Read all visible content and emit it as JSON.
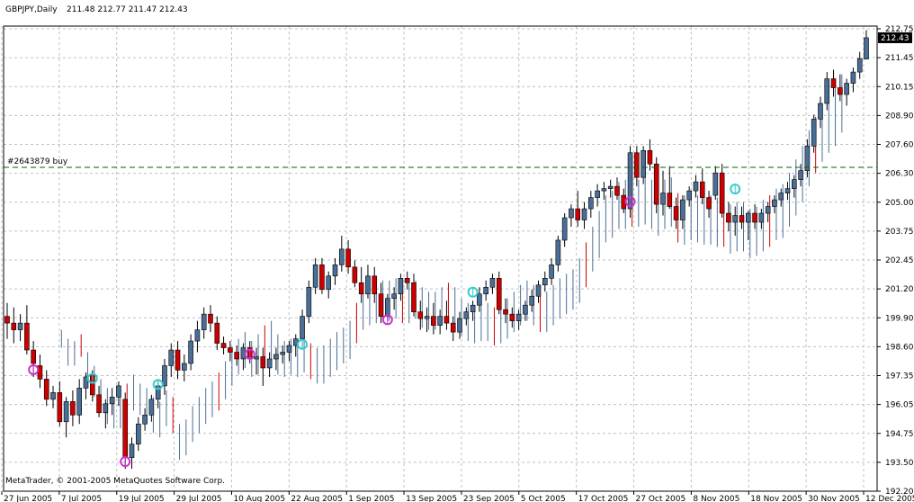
{
  "header": {
    "symbol_period": "GBPJPY,Daily",
    "ohlc": "211.48 212.77 211.47 212.43"
  },
  "copyright": "MetaTrader, © 2001-2005 MetaQuotes Software Corp.",
  "order_line": {
    "label": "#2643879 buy",
    "price": 206.65
  },
  "current_price": {
    "label": "212.43",
    "value": 212.43
  },
  "colors": {
    "background": "#ffffff",
    "grid": "#c0c0c0",
    "frame": "#000000",
    "bull_body": "#4a6e96",
    "bear_body": "#cc0000",
    "wick": "#000000",
    "secondary_line": "#4a6e96",
    "secondary_bear": "#cc0000",
    "order_line": "#006600",
    "signal_up": "#33cccc",
    "signal_down": "#cc33cc"
  },
  "chart_data": {
    "type": "candlestick",
    "y_axis": {
      "min": 192.2,
      "max": 212.95,
      "ticks": [
        "212.75",
        "211.45",
        "210.15",
        "208.90",
        "207.60",
        "206.30",
        "205.00",
        "203.75",
        "202.45",
        "201.20",
        "199.90",
        "198.60",
        "197.35",
        "196.05",
        "194.75",
        "193.50",
        "192.20"
      ]
    },
    "x_axis": {
      "labels": [
        "27 Jun 2005",
        "7 Jul 2005",
        "19 Jul 2005",
        "29 Jul 2005",
        "10 Aug 2005",
        "22 Aug 2005",
        "1 Sep 2005",
        "13 Sep 2005",
        "23 Sep 2005",
        "5 Oct 2005",
        "17 Oct 2005",
        "27 Oct 2005",
        "8 Nov 2005",
        "18 Nov 2005",
        "30 Nov 2005",
        "12 Dec 2005"
      ]
    },
    "candles": [
      [
        200.0,
        200.6,
        199.0,
        199.7
      ],
      [
        199.7,
        200.4,
        198.8,
        199.4
      ],
      [
        199.4,
        200.1,
        198.9,
        199.7
      ],
      [
        199.7,
        200.5,
        198.3,
        198.5
      ],
      [
        198.5,
        198.9,
        197.3,
        197.9
      ],
      [
        197.8,
        198.3,
        196.8,
        197.2
      ],
      [
        197.2,
        197.6,
        196.0,
        196.3
      ],
      [
        196.3,
        196.9,
        195.9,
        196.6
      ],
      [
        196.6,
        197.1,
        195.1,
        195.3
      ],
      [
        195.3,
        196.4,
        194.6,
        196.2
      ],
      [
        196.2,
        196.7,
        195.1,
        195.6
      ],
      [
        195.6,
        197.2,
        195.2,
        196.8
      ],
      [
        196.8,
        197.5,
        196.3,
        197.3
      ],
      [
        197.4,
        197.6,
        196.2,
        196.5
      ],
      [
        196.5,
        196.9,
        195.5,
        195.7
      ],
      [
        195.7,
        196.3,
        195.0,
        196.1
      ],
      [
        196.1,
        196.8,
        195.6,
        196.4
      ],
      [
        196.4,
        197.1,
        196.0,
        196.9
      ],
      [
        196.3,
        196.6,
        193.2,
        193.7
      ],
      [
        193.7,
        194.6,
        193.2,
        194.3
      ],
      [
        194.3,
        195.5,
        194.0,
        195.2
      ],
      [
        195.2,
        195.9,
        194.9,
        195.6
      ],
      [
        195.6,
        196.5,
        195.3,
        196.3
      ],
      [
        196.3,
        197.2,
        195.9,
        196.9
      ],
      [
        196.9,
        198.1,
        196.5,
        197.8
      ],
      [
        197.8,
        198.8,
        197.3,
        198.5
      ],
      [
        198.5,
        198.9,
        197.2,
        197.6
      ],
      [
        197.6,
        198.3,
        197.1,
        197.9
      ],
      [
        197.9,
        199.2,
        197.6,
        198.9
      ],
      [
        198.9,
        199.8,
        198.4,
        199.4
      ],
      [
        199.4,
        200.4,
        199.0,
        200.1
      ],
      [
        200.1,
        200.5,
        199.3,
        199.7
      ],
      [
        199.7,
        200.0,
        198.5,
        198.8
      ],
      [
        198.8,
        199.1,
        198.3,
        198.6
      ],
      [
        198.6,
        198.9,
        198.0,
        198.4
      ],
      [
        198.4,
        198.7,
        197.8,
        198.1
      ],
      [
        198.1,
        198.8,
        197.6,
        198.6
      ],
      [
        198.6,
        198.9,
        197.9,
        198.1
      ],
      [
        198.1,
        198.6,
        197.4,
        198.2
      ],
      [
        198.2,
        198.6,
        196.9,
        197.7
      ],
      [
        197.7,
        198.4,
        197.3,
        198.1
      ],
      [
        198.1,
        198.6,
        197.6,
        198.3
      ],
      [
        198.3,
        198.7,
        197.9,
        198.4
      ],
      [
        198.4,
        198.9,
        198.0,
        198.7
      ],
      [
        198.7,
        199.2,
        198.2,
        199.0
      ],
      [
        199.0,
        200.3,
        198.7,
        200.0
      ],
      [
        200.0,
        201.6,
        199.7,
        201.3
      ],
      [
        201.3,
        202.6,
        201.0,
        202.3
      ],
      [
        202.3,
        202.6,
        201.0,
        201.2
      ],
      [
        201.2,
        202.0,
        200.8,
        201.8
      ],
      [
        201.8,
        202.6,
        201.4,
        202.3
      ],
      [
        202.3,
        203.6,
        202.0,
        203.0
      ],
      [
        203.0,
        203.4,
        201.9,
        202.2
      ],
      [
        202.2,
        202.5,
        201.3,
        201.5
      ],
      [
        201.5,
        202.2,
        200.6,
        201.0
      ],
      [
        201.0,
        202.3,
        200.8,
        201.8
      ],
      [
        201.8,
        202.2,
        200.6,
        201.0
      ],
      [
        201.0,
        201.5,
        199.7,
        200.0
      ],
      [
        200.0,
        201.0,
        199.8,
        200.8
      ],
      [
        200.8,
        201.3,
        200.3,
        201.0
      ],
      [
        201.0,
        201.9,
        200.7,
        201.7
      ],
      [
        201.7,
        202.0,
        201.2,
        201.5
      ],
      [
        201.5,
        201.9,
        200.0,
        200.2
      ],
      [
        200.2,
        200.7,
        199.4,
        199.9
      ],
      [
        199.9,
        200.4,
        199.3,
        200.0
      ],
      [
        200.0,
        200.6,
        199.2,
        199.6
      ],
      [
        199.6,
        200.3,
        199.2,
        200.0
      ],
      [
        200.0,
        200.7,
        199.4,
        199.7
      ],
      [
        199.7,
        200.0,
        198.9,
        199.3
      ],
      [
        199.3,
        200.2,
        199.0,
        199.9
      ],
      [
        199.9,
        200.4,
        199.6,
        200.2
      ],
      [
        200.2,
        200.7,
        199.8,
        200.5
      ],
      [
        200.5,
        201.3,
        200.2,
        201.0
      ],
      [
        201.0,
        201.6,
        200.7,
        201.3
      ],
      [
        201.3,
        201.9,
        201.0,
        201.7
      ],
      [
        201.7,
        202.0,
        200.1,
        200.3
      ],
      [
        200.3,
        200.8,
        199.7,
        200.1
      ],
      [
        200.1,
        200.4,
        199.5,
        199.8
      ],
      [
        199.8,
        200.3,
        199.4,
        200.1
      ],
      [
        200.1,
        200.7,
        199.8,
        200.5
      ],
      [
        200.5,
        201.2,
        200.2,
        200.9
      ],
      [
        200.9,
        201.6,
        200.6,
        201.4
      ],
      [
        201.4,
        202.0,
        201.1,
        201.7
      ],
      [
        201.7,
        202.6,
        201.4,
        202.3
      ],
      [
        202.3,
        203.6,
        202.0,
        203.4
      ],
      [
        203.4,
        204.6,
        203.1,
        204.4
      ],
      [
        204.4,
        205.0,
        204.0,
        204.8
      ],
      [
        204.8,
        205.6,
        204.0,
        204.3
      ],
      [
        204.3,
        205.1,
        203.9,
        204.8
      ],
      [
        204.8,
        205.6,
        204.4,
        205.3
      ],
      [
        205.3,
        205.9,
        204.9,
        205.6
      ],
      [
        205.6,
        206.0,
        205.2,
        205.7
      ],
      [
        205.7,
        206.1,
        205.3,
        205.8
      ],
      [
        205.8,
        206.2,
        205.2,
        205.4
      ],
      [
        205.4,
        205.7,
        204.6,
        204.8
      ],
      [
        204.8,
        207.6,
        204.4,
        207.3
      ],
      [
        207.3,
        207.6,
        205.8,
        206.2
      ],
      [
        206.2,
        207.6,
        205.9,
        207.4
      ],
      [
        207.4,
        207.9,
        206.5,
        206.8
      ],
      [
        206.8,
        207.1,
        204.6,
        205.0
      ],
      [
        205.0,
        206.5,
        204.5,
        205.5
      ],
      [
        205.5,
        206.7,
        204.8,
        204.9
      ],
      [
        204.9,
        205.3,
        203.9,
        204.3
      ],
      [
        204.3,
        205.4,
        203.9,
        205.2
      ],
      [
        205.2,
        205.8,
        204.9,
        205.6
      ],
      [
        205.6,
        206.3,
        205.3,
        206.0
      ],
      [
        206.0,
        206.6,
        205.0,
        205.3
      ],
      [
        205.3,
        205.6,
        204.4,
        204.8
      ],
      [
        205.4,
        206.7,
        205.2,
        206.4
      ],
      [
        206.4,
        206.8,
        204.4,
        204.6
      ],
      [
        204.6,
        205.1,
        203.8,
        204.2
      ],
      [
        204.2,
        204.9,
        203.6,
        204.5
      ],
      [
        204.5,
        204.9,
        203.9,
        204.2
      ],
      [
        204.2,
        204.7,
        203.4,
        204.6
      ],
      [
        204.6,
        205.0,
        203.9,
        204.2
      ],
      [
        204.2,
        204.8,
        203.9,
        204.6
      ],
      [
        204.6,
        205.1,
        204.2,
        204.9
      ],
      [
        204.9,
        205.4,
        204.6,
        205.2
      ],
      [
        205.2,
        205.7,
        204.9,
        205.5
      ],
      [
        205.5,
        206.0,
        205.2,
        205.7
      ],
      [
        205.7,
        206.3,
        205.3,
        206.1
      ],
      [
        206.1,
        206.8,
        205.8,
        206.5
      ],
      [
        206.5,
        207.9,
        206.2,
        207.6
      ],
      [
        207.6,
        209.0,
        207.3,
        208.8
      ],
      [
        208.8,
        209.8,
        208.4,
        209.5
      ],
      [
        209.5,
        210.9,
        209.2,
        210.6
      ],
      [
        210.6,
        211.0,
        209.8,
        210.2
      ],
      [
        210.2,
        210.8,
        209.6,
        209.9
      ],
      [
        209.9,
        210.6,
        209.4,
        210.4
      ],
      [
        210.4,
        211.1,
        210.0,
        210.9
      ],
      [
        210.9,
        211.8,
        210.6,
        211.5
      ],
      [
        211.48,
        212.77,
        211.47,
        212.43
      ]
    ],
    "secondary_bars": [
      [
        198.6,
        199.4
      ],
      [
        197.8,
        199.0
      ],
      [
        197.8,
        198.9
      ],
      [
        198.2,
        199.2
      ],
      [
        197.0,
        198.4
      ],
      [
        196.4,
        197.8
      ],
      [
        195.8,
        197.2
      ],
      [
        195.2,
        196.8
      ],
      [
        195.0,
        196.4
      ],
      [
        195.0,
        196.6
      ],
      [
        195.3,
        197.0
      ],
      [
        195.8,
        197.4
      ],
      [
        195.6,
        197.0
      ],
      [
        195.2,
        196.8
      ],
      [
        194.8,
        196.4
      ],
      [
        194.6,
        196.2
      ],
      [
        195.1,
        196.7
      ],
      [
        194.8,
        196.4
      ],
      [
        193.6,
        195.2
      ],
      [
        193.8,
        195.4
      ],
      [
        194.4,
        196.0
      ],
      [
        194.8,
        196.4
      ],
      [
        195.2,
        196.8
      ],
      [
        195.5,
        197.1
      ],
      [
        195.8,
        197.5
      ],
      [
        196.3,
        198.0
      ],
      [
        196.9,
        198.6
      ],
      [
        197.4,
        199.0
      ],
      [
        197.7,
        199.3
      ],
      [
        197.3,
        198.9
      ],
      [
        197.4,
        199.2
      ],
      [
        197.8,
        199.6
      ],
      [
        198.0,
        199.8
      ],
      [
        197.4,
        199.2
      ],
      [
        197.3,
        198.9
      ],
      [
        197.4,
        199.0
      ],
      [
        197.3,
        198.9
      ],
      [
        197.5,
        199.1
      ],
      [
        197.2,
        198.8
      ],
      [
        197.0,
        198.6
      ],
      [
        197.0,
        198.7
      ],
      [
        197.3,
        199.0
      ],
      [
        197.6,
        199.3
      ],
      [
        197.9,
        199.5
      ],
      [
        198.1,
        199.8
      ],
      [
        198.8,
        200.6
      ],
      [
        199.4,
        201.2
      ],
      [
        199.6,
        201.4
      ],
      [
        199.7,
        201.5
      ],
      [
        199.8,
        201.6
      ],
      [
        199.8,
        201.6
      ],
      [
        199.9,
        201.7
      ],
      [
        199.7,
        201.5
      ],
      [
        199.7,
        201.5
      ],
      [
        199.9,
        201.6
      ],
      [
        199.5,
        201.3
      ],
      [
        199.4,
        201.1
      ],
      [
        199.4,
        201.1
      ],
      [
        199.6,
        201.3
      ],
      [
        199.7,
        201.5
      ],
      [
        199.6,
        201.3
      ],
      [
        199.1,
        200.8
      ],
      [
        198.9,
        200.6
      ],
      [
        198.8,
        200.5
      ],
      [
        198.9,
        200.6
      ],
      [
        198.9,
        200.6
      ],
      [
        198.7,
        200.4
      ],
      [
        198.8,
        200.5
      ],
      [
        199.0,
        200.8
      ],
      [
        199.3,
        201.1
      ],
      [
        199.6,
        201.4
      ],
      [
        199.8,
        201.6
      ],
      [
        199.6,
        201.4
      ],
      [
        199.3,
        201.0
      ],
      [
        199.3,
        201.1
      ],
      [
        199.6,
        201.4
      ],
      [
        199.9,
        201.7
      ],
      [
        200.1,
        201.9
      ],
      [
        200.3,
        202.1
      ],
      [
        200.6,
        202.6
      ],
      [
        201.3,
        203.3
      ],
      [
        202.0,
        204.0
      ],
      [
        202.6,
        204.7
      ],
      [
        203.3,
        205.4
      ],
      [
        203.5,
        205.6
      ],
      [
        203.9,
        206.0
      ],
      [
        203.9,
        206.1
      ],
      [
        204.0,
        206.2
      ],
      [
        204.0,
        206.1
      ],
      [
        204.1,
        206.3
      ],
      [
        203.9,
        206.1
      ],
      [
        203.6,
        205.8
      ],
      [
        203.9,
        206.1
      ],
      [
        204.0,
        206.2
      ],
      [
        203.3,
        205.5
      ],
      [
        203.2,
        205.4
      ],
      [
        203.4,
        205.5
      ],
      [
        203.3,
        205.4
      ],
      [
        203.2,
        205.4
      ],
      [
        203.2,
        205.4
      ],
      [
        203.1,
        205.3
      ],
      [
        203.1,
        205.3
      ],
      [
        202.8,
        205.0
      ],
      [
        202.9,
        205.1
      ],
      [
        202.9,
        205.1
      ],
      [
        202.6,
        204.8
      ],
      [
        202.7,
        204.9
      ],
      [
        202.9,
        205.2
      ],
      [
        203.1,
        205.4
      ],
      [
        203.4,
        205.7
      ],
      [
        203.5,
        205.9
      ],
      [
        204.0,
        206.4
      ],
      [
        204.5,
        207.0
      ],
      [
        205.1,
        207.6
      ],
      [
        205.8,
        208.3
      ],
      [
        206.4,
        208.9
      ],
      [
        206.9,
        209.5
      ],
      [
        207.3,
        209.9
      ],
      [
        207.6,
        210.2
      ],
      [
        208.2,
        210.8
      ]
    ],
    "signals": [
      {
        "index": 4,
        "dir": "down",
        "price": 197.62
      },
      {
        "index": 13,
        "dir": "up",
        "price": 197.23
      },
      {
        "index": 18,
        "dir": "down",
        "price": 193.52
      },
      {
        "index": 23,
        "dir": "up",
        "price": 196.96
      },
      {
        "index": 37,
        "dir": "down",
        "price": 198.31
      },
      {
        "index": 45,
        "dir": "up",
        "price": 198.75
      },
      {
        "index": 58,
        "dir": "down",
        "price": 199.85
      },
      {
        "index": 71,
        "dir": "up",
        "price": 201.08
      },
      {
        "index": 95,
        "dir": "down",
        "price": 205.12
      },
      {
        "index": 111,
        "dir": "up",
        "price": 205.68
      }
    ]
  }
}
